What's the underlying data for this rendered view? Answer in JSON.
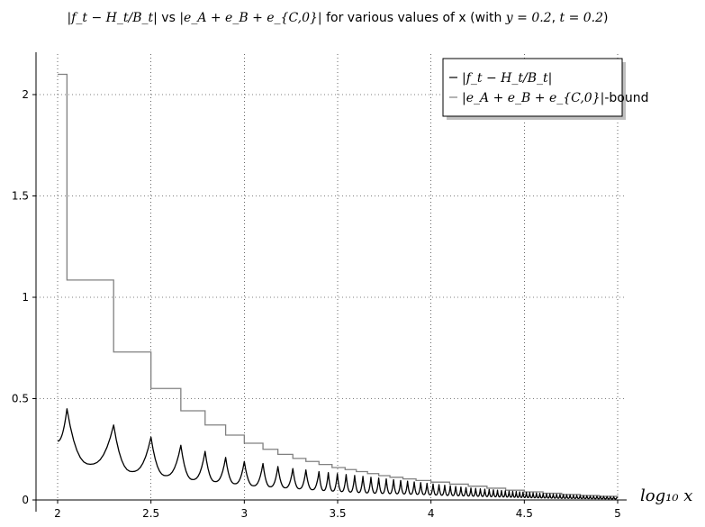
{
  "chart_data": {
    "type": "line",
    "title_parts": {
      "expr1": "|f_t − H_t/B_t|",
      "vs": " vs ",
      "expr2": "|e_A + e_B + e_{C,0}|",
      "rest": " for various values of x (with ",
      "y_eq": "y = 0.2",
      "sep": ", ",
      "t_eq": "t = 0.2",
      "close": ")"
    },
    "xlabel": "log₁₀ x",
    "ylabel": "",
    "xlim": [
      2,
      5
    ],
    "ylim": [
      0,
      2.2
    ],
    "x_ticks": [
      2,
      2.5,
      3,
      3.5,
      4,
      4.5,
      5
    ],
    "x_tick_labels": [
      "2",
      "2.5",
      "3",
      "3.5",
      "4",
      "4.5",
      "5"
    ],
    "y_ticks": [
      0,
      0.5,
      1,
      1.5,
      2
    ],
    "y_tick_labels": [
      "0",
      "0.5",
      "1",
      "1.5",
      "2"
    ],
    "grid": "dotted",
    "legend_placement": "top-right",
    "series": [
      {
        "name": "|f_t − H_t/B_t|",
        "color": "#000000",
        "style": "oscillating",
        "peaks": [
          [
            2.05,
            0.45
          ],
          [
            2.3,
            0.37
          ],
          [
            2.5,
            0.31
          ],
          [
            2.66,
            0.27
          ],
          [
            2.79,
            0.24
          ],
          [
            2.9,
            0.21
          ],
          [
            3.0,
            0.19
          ],
          [
            3.1,
            0.18
          ],
          [
            3.18,
            0.165
          ],
          [
            3.26,
            0.155
          ],
          [
            3.33,
            0.148
          ],
          [
            3.4,
            0.14
          ],
          [
            3.5,
            0.13
          ],
          [
            3.6,
            0.12
          ],
          [
            3.7,
            0.11
          ],
          [
            3.8,
            0.1
          ],
          [
            3.9,
            0.09
          ],
          [
            4.0,
            0.08
          ],
          [
            4.2,
            0.06
          ],
          [
            4.4,
            0.045
          ],
          [
            4.6,
            0.032
          ],
          [
            4.8,
            0.022
          ],
          [
            5.0,
            0.015
          ]
        ],
        "troughs": [
          [
            2.0,
            0.29
          ],
          [
            2.2,
            0.16
          ],
          [
            2.4,
            0.14
          ],
          [
            2.58,
            0.12
          ],
          [
            2.73,
            0.1
          ],
          [
            2.85,
            0.09
          ],
          [
            2.95,
            0.08
          ],
          [
            3.05,
            0.07
          ],
          [
            3.14,
            0.065
          ],
          [
            3.22,
            0.06
          ],
          [
            3.3,
            0.055
          ],
          [
            3.37,
            0.05
          ],
          [
            3.45,
            0.045
          ],
          [
            3.55,
            0.04
          ],
          [
            3.65,
            0.035
          ],
          [
            3.75,
            0.032
          ],
          [
            3.85,
            0.03
          ],
          [
            3.95,
            0.027
          ],
          [
            4.1,
            0.022
          ],
          [
            4.3,
            0.017
          ],
          [
            4.5,
            0.012
          ],
          [
            4.7,
            0.008
          ],
          [
            4.9,
            0.006
          ],
          [
            5.0,
            0.005
          ]
        ]
      },
      {
        "name": "|e_A + e_B + e_{C,0}|-bound",
        "color": "#808080",
        "style": "step",
        "steps": [
          [
            2.0,
            2.1
          ],
          [
            2.05,
            1.085
          ],
          [
            2.3,
            0.73
          ],
          [
            2.5,
            0.55
          ],
          [
            2.66,
            0.44
          ],
          [
            2.79,
            0.37
          ],
          [
            2.9,
            0.32
          ],
          [
            3.0,
            0.28
          ],
          [
            3.1,
            0.25
          ],
          [
            3.18,
            0.225
          ],
          [
            3.26,
            0.205
          ],
          [
            3.33,
            0.19
          ],
          [
            3.4,
            0.175
          ],
          [
            3.47,
            0.16
          ],
          [
            3.54,
            0.15
          ],
          [
            3.6,
            0.14
          ],
          [
            3.66,
            0.13
          ],
          [
            3.72,
            0.12
          ],
          [
            3.78,
            0.112
          ],
          [
            3.85,
            0.104
          ],
          [
            3.92,
            0.096
          ],
          [
            4.0,
            0.088
          ],
          [
            4.1,
            0.078
          ],
          [
            4.2,
            0.068
          ],
          [
            4.3,
            0.058
          ],
          [
            4.4,
            0.048
          ],
          [
            4.5,
            0.04
          ],
          [
            4.6,
            0.033
          ],
          [
            4.7,
            0.027
          ],
          [
            4.8,
            0.022
          ],
          [
            4.9,
            0.018
          ],
          [
            5.0,
            0.015
          ]
        ]
      }
    ],
    "legend": {
      "entry1": "|f_t − H_t/B_t|",
      "entry2_expr": "|e_A + e_B + e_{C,0}|",
      "entry2_suffix": "-bound"
    }
  }
}
